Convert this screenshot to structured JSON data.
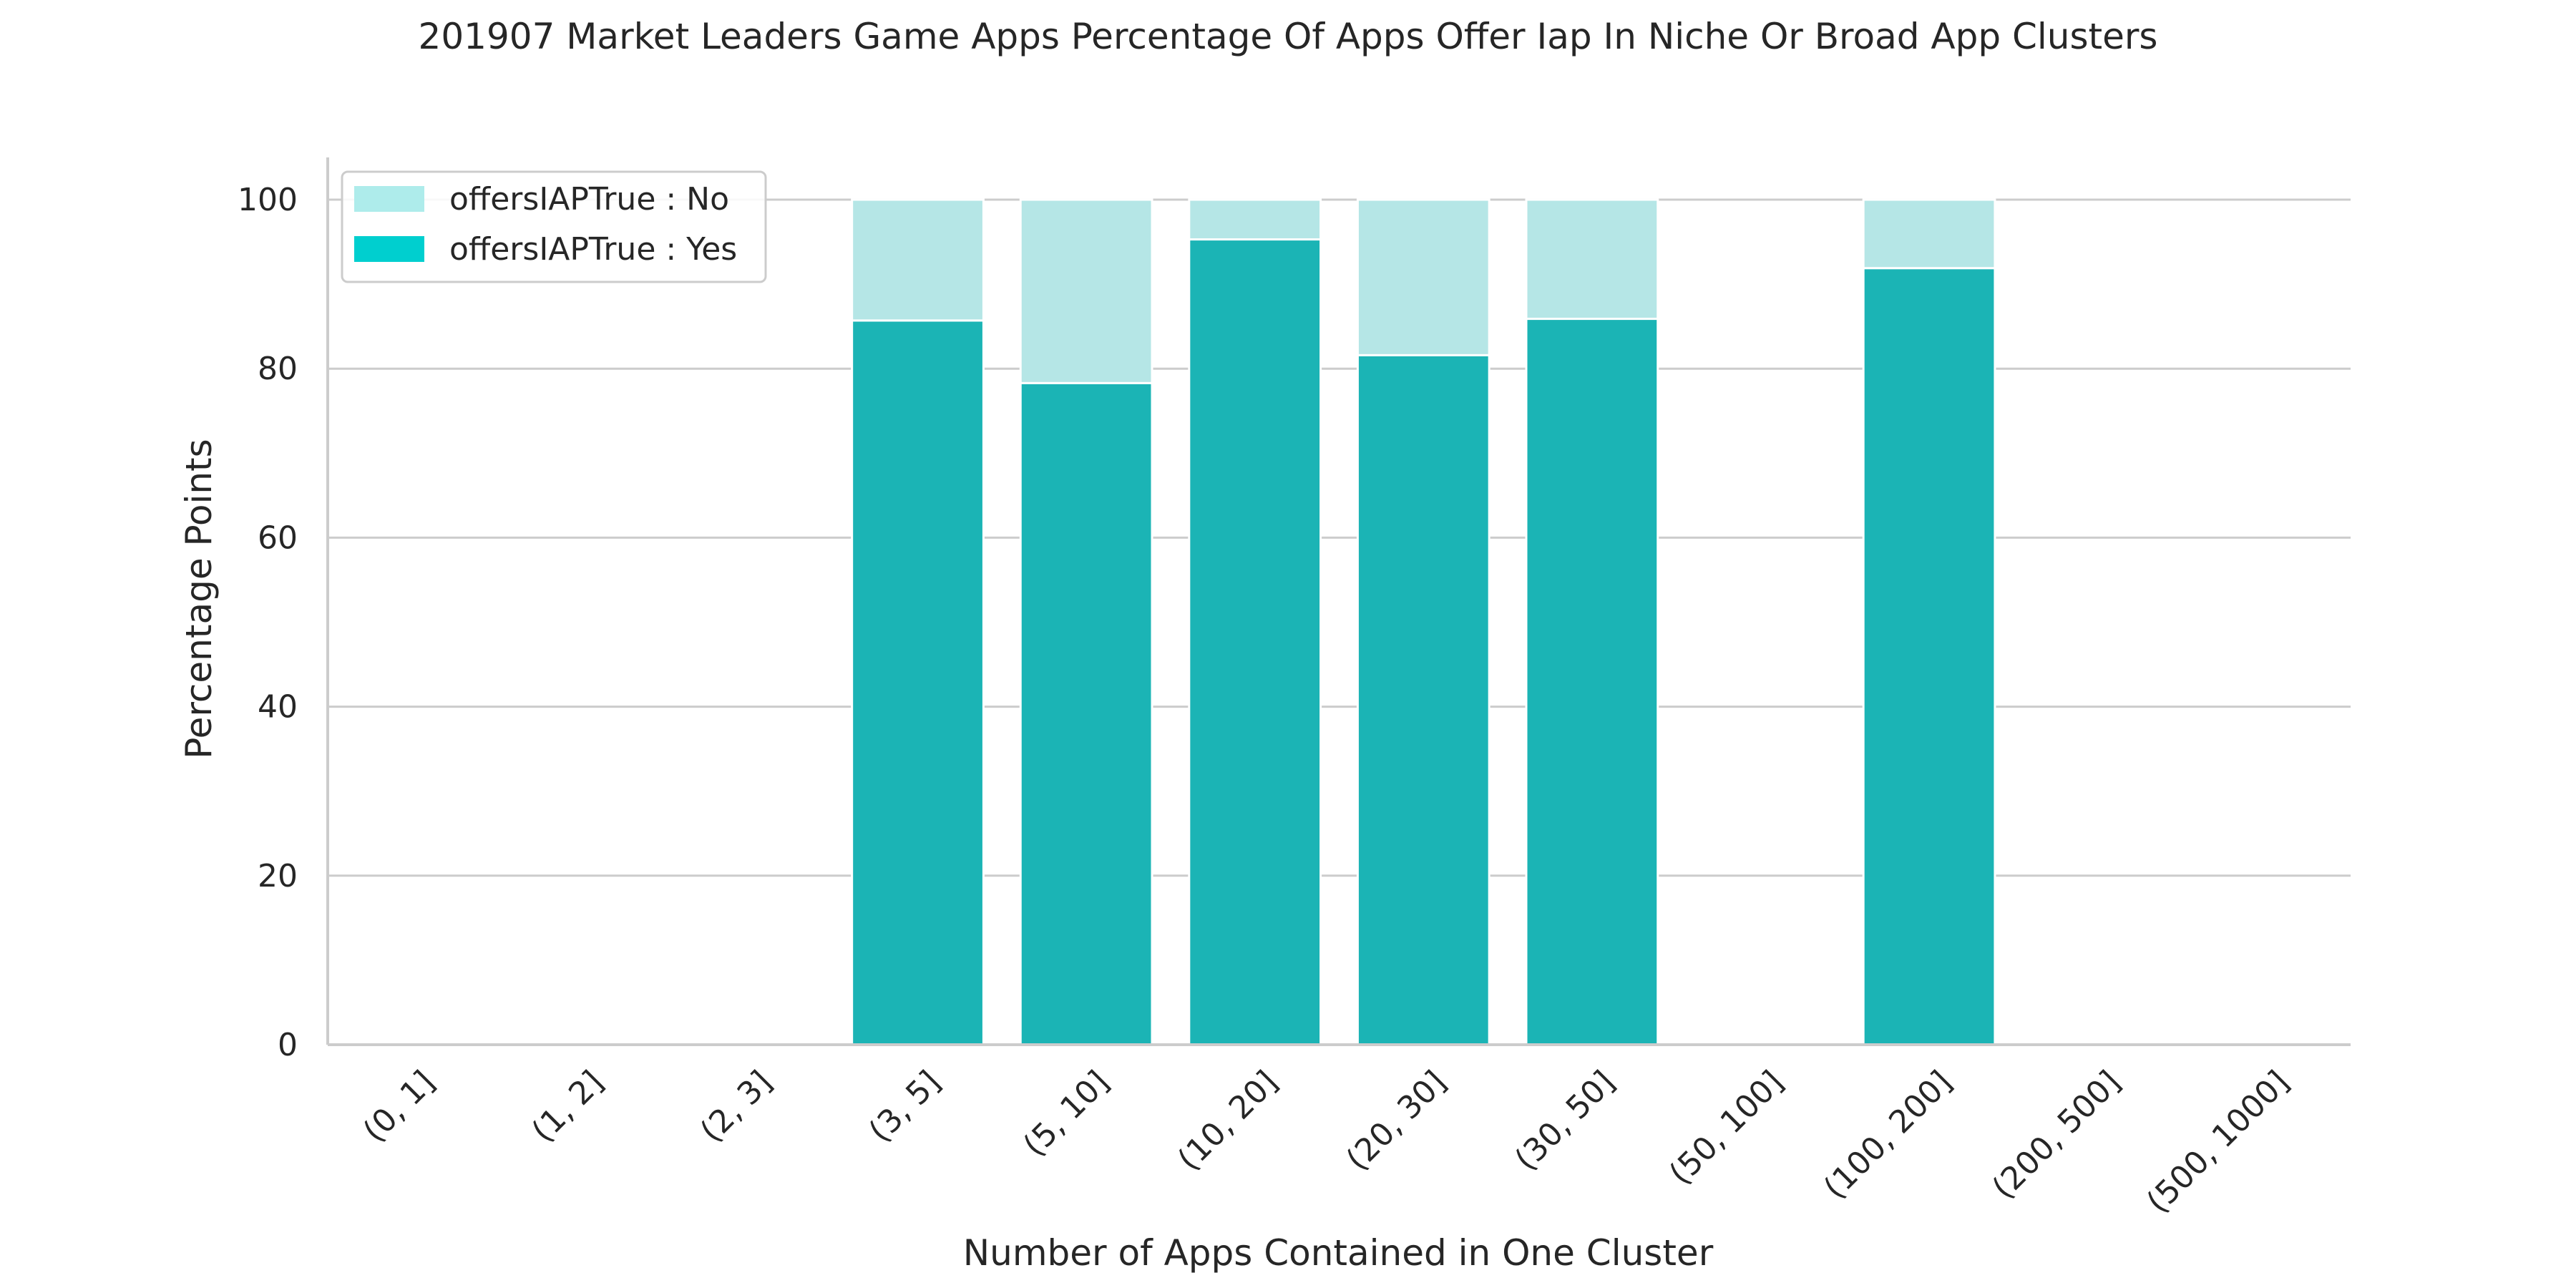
{
  "colors": {
    "yes": "#1bb4b5",
    "no": "#b5e6e6",
    "legend_yes": "#00cfcf",
    "legend_no": "#aeeceb",
    "grid": "#cccccc",
    "axis": "#cccccc",
    "text": "#262626"
  },
  "chart_data": {
    "type": "bar",
    "stacked": true,
    "title": "201907 Market Leaders Game Apps Percentage Of Apps Offer Iap In Niche Or Broad App Clusters",
    "xlabel": "Number of Apps Contained in One Cluster",
    "ylabel": "Percentage Points",
    "ylim": [
      0,
      105
    ],
    "yticks": [
      0,
      20,
      40,
      60,
      80,
      100
    ],
    "grid": "horizontal",
    "legend_position": "top-left",
    "categories": [
      "(0, 1]",
      "(1, 2]",
      "(2, 3]",
      "(3, 5]",
      "(5, 10]",
      "(10, 20]",
      "(20, 30]",
      "(30, 50]",
      "(50, 100]",
      "(100, 200]",
      "(200, 500]",
      "(500, 1000]"
    ],
    "series": [
      {
        "name": "offersIAPTrue : Yes",
        "values": [
          0,
          0,
          0,
          85.7,
          78.3,
          95.3,
          81.6,
          85.9,
          0,
          91.9,
          0,
          0
        ]
      },
      {
        "name": "offersIAPTrue : No",
        "values": [
          0,
          0,
          0,
          14.3,
          21.7,
          4.7,
          18.4,
          14.1,
          0,
          8.1,
          0,
          0
        ]
      }
    ],
    "legend": [
      "offersIAPTrue : No",
      "offersIAPTrue : Yes"
    ]
  }
}
